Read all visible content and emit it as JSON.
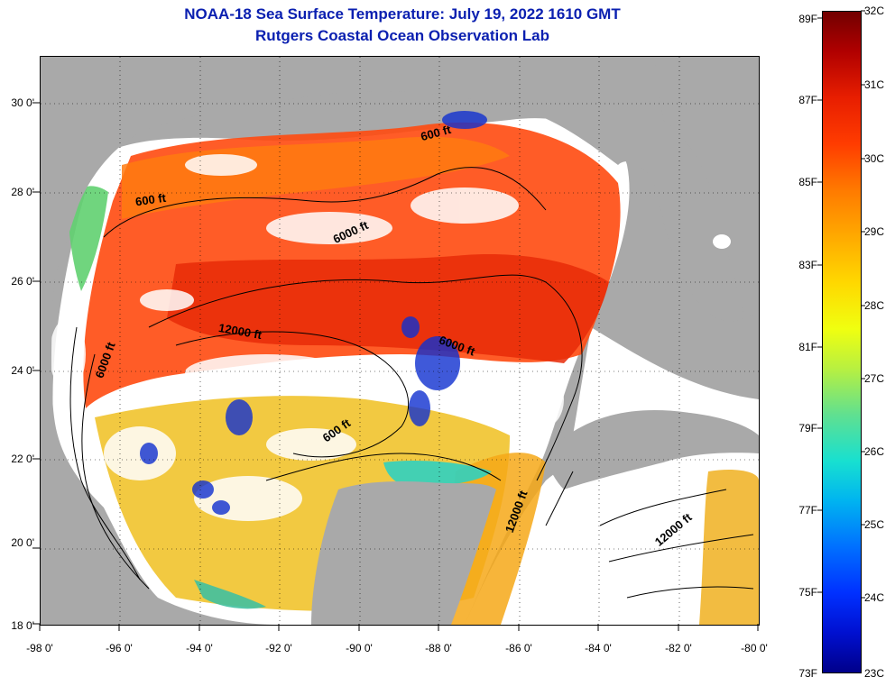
{
  "header": {
    "title_line1": "NOAA-18 Sea Surface Temperature:  July 19, 2022 1610 GMT",
    "title_line2": "Rutgers Coastal Ocean Observation Lab"
  },
  "axes": {
    "latitude_labels": [
      "30 0'",
      "28 0'",
      "26 0'",
      "24 0'",
      "22 0'",
      "20 0'",
      "18 0'"
    ],
    "longitude_labels": [
      "-98 0'",
      "-96 0'",
      "-94 0'",
      "-92 0'",
      "-90 0'",
      "-88 0'",
      "-86 0'",
      "-84 0'",
      "-82 0'",
      "-80 0'"
    ]
  },
  "contours": {
    "labels": [
      "600 ft",
      "600 ft",
      "6000 ft",
      "6000 ft",
      "12000 ft",
      "6000 ft",
      "600 ft",
      "12000 ft",
      "12000 ft"
    ]
  },
  "colorbar": {
    "fahrenheit": [
      "89F",
      "87F",
      "85F",
      "83F",
      "81F",
      "79F",
      "77F",
      "75F",
      "73F"
    ],
    "celsius": [
      "32C",
      "31C",
      "30C",
      "29C",
      "28C",
      "27C",
      "26C",
      "25C",
      "24C",
      "23C"
    ]
  },
  "colors": {
    "title": "#0a1fb0",
    "land": "#a9a9a9",
    "cloud": "#ffffff",
    "warm": "#ff4a10",
    "cool": "#f0c020"
  }
}
